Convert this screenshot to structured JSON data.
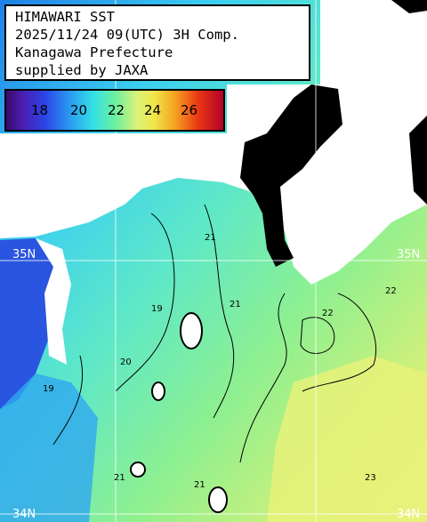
{
  "title": {
    "line1": "HIMAWARI SST",
    "line2": "2025/11/24 09(UTC) 3H Comp.",
    "line3": "Kanagawa Prefecture",
    "line4": "supplied by JAXA"
  },
  "colorbar": {
    "ticks": [
      "18",
      "20",
      "22",
      "24",
      "26"
    ]
  },
  "gridlines": {
    "lat_35": "35N",
    "lat_35_right": "35N",
    "lat_34": "34N",
    "lat_34_right": "34N"
  },
  "contour_labels": [
    "19",
    "20",
    "21",
    "21",
    "22",
    "22",
    "23",
    "19",
    "21",
    "21"
  ],
  "colors": {
    "land": "#ffffff",
    "cloud": "#000000",
    "sst_18": "#2a45e6",
    "sst_20": "#34e0e6",
    "sst_22": "#6af0a0",
    "sst_24": "#f0e84a",
    "sst_26": "#ec3a14"
  }
}
